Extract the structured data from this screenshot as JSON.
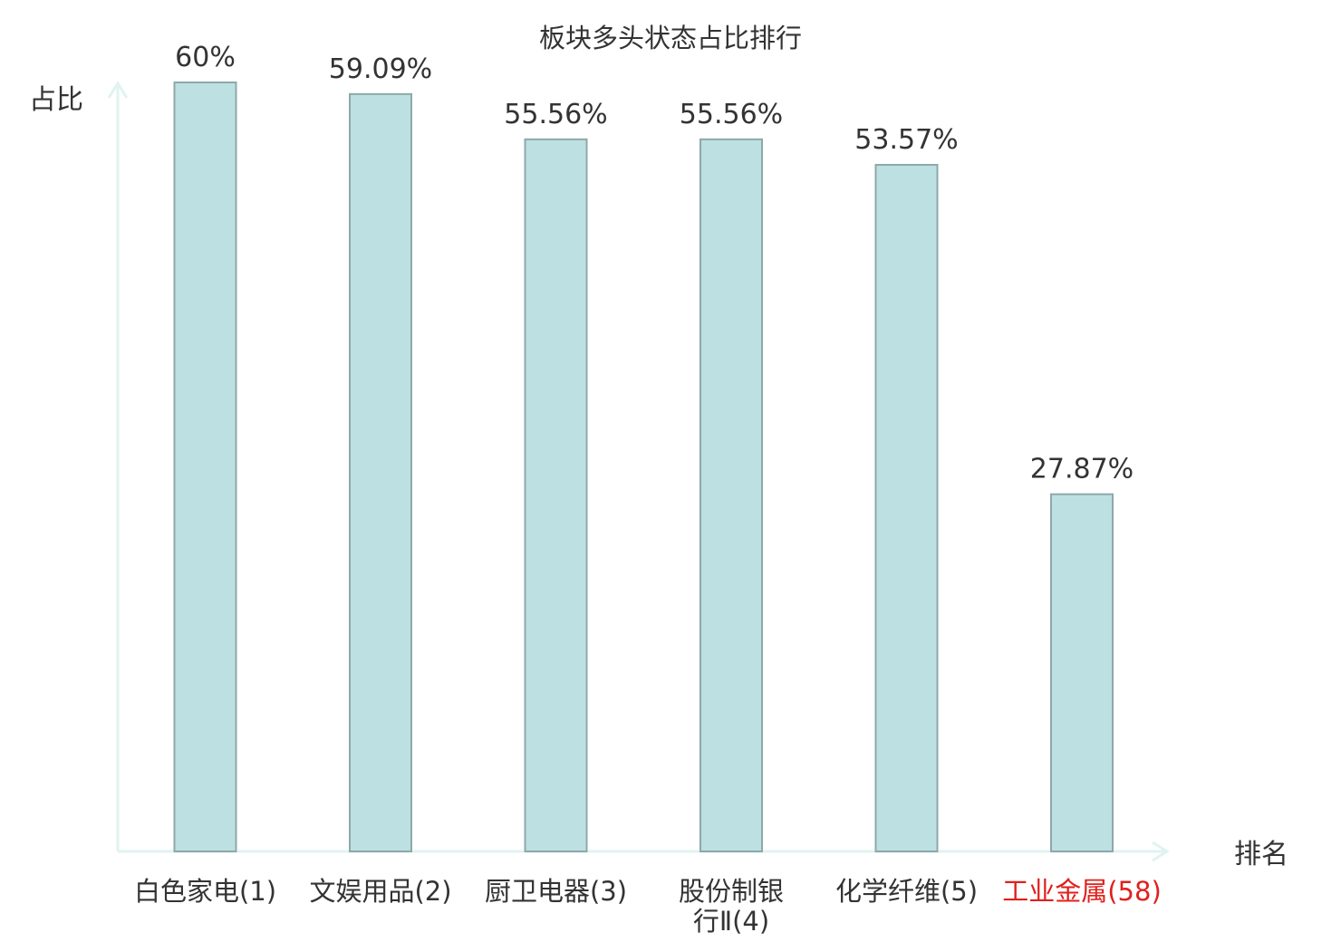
{
  "colors": {
    "bar_fill": "#bde0e2",
    "bar_stroke": "#8ea8aa",
    "axis": "#e0f3f1",
    "text": "#333333",
    "highlight": "#e0201c"
  },
  "chart_data": {
    "type": "bar",
    "title": "板块多头状态占比排行",
    "ylabel": "占比",
    "xlabel": "排名",
    "ylim": [
      0,
      60
    ],
    "grid": false,
    "categories": [
      {
        "label": "白色家电(1)",
        "highlight": false
      },
      {
        "label": "文娱用品(2)",
        "highlight": false
      },
      {
        "label": "厨卫电器(3)",
        "highlight": false
      },
      {
        "label": "股份制银行Ⅱ(4)",
        "highlight": false
      },
      {
        "label": "化学纤维(5)",
        "highlight": false
      },
      {
        "label": "工业金属(58)",
        "highlight": true
      }
    ],
    "values": [
      60,
      59.09,
      55.56,
      55.56,
      53.57,
      27.87
    ],
    "data_labels": [
      "60%",
      "59.09%",
      "55.56%",
      "55.56%",
      "53.57%",
      "27.87%"
    ]
  }
}
